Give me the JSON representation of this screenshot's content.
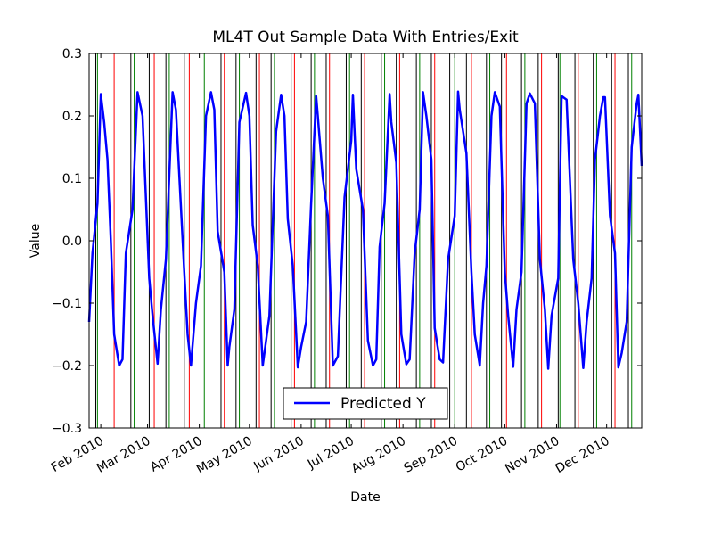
{
  "chart_data": {
    "type": "line",
    "title": "ML4T Out Sample Data With Entries/Exit",
    "x_label": "Date",
    "y_label": "Value",
    "xlim": [
      "2010-01-25",
      "2010-12-22"
    ],
    "xticks": [
      {
        "value": "2010-02-01",
        "label": "Feb 2010"
      },
      {
        "value": "2010-03-01",
        "label": "Mar 2010"
      },
      {
        "value": "2010-04-01",
        "label": "Apr 2010"
      },
      {
        "value": "2010-05-01",
        "label": "May 2010"
      },
      {
        "value": "2010-06-01",
        "label": "Jun 2010"
      },
      {
        "value": "2010-07-01",
        "label": "Jul 2010"
      },
      {
        "value": "2010-08-01",
        "label": "Aug 2010"
      },
      {
        "value": "2010-09-01",
        "label": "Sep 2010"
      },
      {
        "value": "2010-10-01",
        "label": "Oct 2010"
      },
      {
        "value": "2010-11-01",
        "label": "Nov 2010"
      },
      {
        "value": "2010-12-01",
        "label": "Dec 2010"
      }
    ],
    "ylim": [
      -0.3,
      0.3
    ],
    "yticks": [
      {
        "value": -0.3,
        "label": "−0.3"
      },
      {
        "value": -0.2,
        "label": "−0.2"
      },
      {
        "value": -0.1,
        "label": "−0.1"
      },
      {
        "value": 0,
        "label": "0.0"
      },
      0.1,
      0.2,
      0.3
    ],
    "legend": "lower center",
    "vlines": [
      {
        "color": "#008000",
        "x": [
          "2010-01-30",
          "2010-02-21",
          "2010-03-14",
          "2010-04-04",
          "2010-04-25",
          "2010-05-16",
          "2010-06-09",
          "2010-06-30",
          "2010-07-21",
          "2010-08-11",
          "2010-09-01",
          "2010-09-22",
          "2010-10-13",
          "2010-11-03",
          "2010-11-25",
          "2010-12-16"
        ]
      },
      {
        "color": "#000000",
        "x": [
          "2010-01-29",
          "2010-02-19",
          "2010-03-02",
          "2010-03-12",
          "2010-03-23",
          "2010-04-02",
          "2010-04-14",
          "2010-04-23",
          "2010-05-05",
          "2010-05-14",
          "2010-05-26",
          "2010-06-07",
          "2010-06-16",
          "2010-06-28",
          "2010-07-07",
          "2010-07-19",
          "2010-07-28",
          "2010-08-09",
          "2010-08-18",
          "2010-08-29",
          "2010-09-08",
          "2010-09-20",
          "2010-09-29",
          "2010-10-11",
          "2010-10-21",
          "2010-11-02",
          "2010-11-12",
          "2010-11-23",
          "2010-12-04",
          "2010-12-14"
        ]
      },
      {
        "color": "#ff0000",
        "x": [
          "2010-02-09",
          "2010-03-05",
          "2010-03-26",
          "2010-04-16",
          "2010-05-07",
          "2010-05-28",
          "2010-06-18",
          "2010-07-09",
          "2010-07-30",
          "2010-08-20",
          "2010-09-11",
          "2010-10-02",
          "2010-10-23",
          "2010-11-14",
          "2010-12-06"
        ]
      }
    ],
    "x": [
      "2010-01-25",
      "2010-01-27",
      "2010-01-30",
      "2010-02-01",
      "2010-02-03",
      "2010-02-05",
      "2010-02-07",
      "2010-02-09",
      "2010-02-12",
      "2010-02-14",
      "2010-02-16",
      "2010-02-20",
      "2010-02-23",
      "2010-02-26",
      "2010-03-02",
      "2010-03-04",
      "2010-03-07",
      "2010-03-09",
      "2010-03-12",
      "2010-03-16",
      "2010-03-18",
      "2010-03-23",
      "2010-03-25",
      "2010-03-27",
      "2010-03-30",
      "2010-04-02",
      "2010-04-05",
      "2010-04-08",
      "2010-04-10",
      "2010-04-12",
      "2010-04-16",
      "2010-04-18",
      "2010-04-19",
      "2010-04-22",
      "2010-04-25",
      "2010-04-29",
      "2010-05-01",
      "2010-05-03",
      "2010-05-06",
      "2010-05-09",
      "2010-05-10",
      "2010-05-13",
      "2010-05-17",
      "2010-05-20",
      "2010-05-22",
      "2010-05-24",
      "2010-05-27",
      "2010-05-30",
      "2010-06-01",
      "2010-06-04",
      "2010-06-07",
      "2010-06-10",
      "2010-06-14",
      "2010-06-17",
      "2010-06-20",
      "2010-06-23",
      "2010-06-27",
      "2010-07-01",
      "2010-07-02",
      "2010-07-04",
      "2010-07-08",
      "2010-07-11",
      "2010-07-14",
      "2010-07-16",
      "2010-07-18",
      "2010-07-21",
      "2010-07-24",
      "2010-07-25",
      "2010-07-28",
      "2010-07-31",
      "2010-08-03",
      "2010-08-05",
      "2010-08-08",
      "2010-08-11",
      "2010-08-13",
      "2010-08-15",
      "2010-08-18",
      "2010-08-20",
      "2010-08-23",
      "2010-08-25",
      "2010-08-28",
      "2010-09-01",
      "2010-09-03",
      "2010-09-04",
      "2010-09-08",
      "2010-09-11",
      "2010-09-13",
      "2010-09-16",
      "2010-09-18",
      "2010-09-20",
      "2010-09-23",
      "2010-09-25",
      "2010-09-28",
      "2010-10-01",
      "2010-10-03",
      "2010-10-06",
      "2010-10-08",
      "2010-10-11",
      "2010-10-14",
      "2010-10-16",
      "2010-10-19",
      "2010-10-22",
      "2010-10-25",
      "2010-10-27",
      "2010-10-29",
      "2010-11-02",
      "2010-11-04",
      "2010-11-07",
      "2010-11-11",
      "2010-11-14",
      "2010-11-17",
      "2010-11-19",
      "2010-11-22",
      "2010-11-24",
      "2010-11-27",
      "2010-11-29",
      "2010-11-30",
      "2010-12-03",
      "2010-12-06",
      "2010-12-08",
      "2010-12-10",
      "2010-12-13",
      "2010-12-16",
      "2010-12-19",
      "2010-12-20",
      "2010-12-22"
    ],
    "series": [
      {
        "name": "Predicted Y",
        "color": "#0000ff",
        "values": [
          -0.13,
          -0.02,
          0.06,
          0.235,
          0.19,
          0.13,
          0.0,
          -0.15,
          -0.2,
          -0.19,
          -0.02,
          0.05,
          0.238,
          0.2,
          -0.06,
          -0.12,
          -0.197,
          -0.11,
          -0.03,
          0.238,
          0.21,
          -0.05,
          -0.15,
          -0.2,
          -0.1,
          -0.04,
          0.2,
          0.238,
          0.21,
          0.015,
          -0.05,
          -0.2,
          -0.17,
          -0.11,
          0.19,
          0.237,
          0.2,
          0.025,
          -0.04,
          -0.2,
          -0.18,
          -0.12,
          0.175,
          0.234,
          0.2,
          0.035,
          -0.04,
          -0.203,
          -0.17,
          -0.13,
          0.06,
          0.232,
          0.1,
          0.04,
          -0.2,
          -0.185,
          0.07,
          0.16,
          0.234,
          0.115,
          0.05,
          -0.16,
          -0.2,
          -0.19,
          -0.01,
          0.06,
          0.235,
          0.19,
          0.125,
          -0.15,
          -0.198,
          -0.19,
          -0.02,
          0.05,
          0.238,
          0.2,
          0.13,
          -0.14,
          -0.19,
          -0.195,
          -0.03,
          0.04,
          0.239,
          0.21,
          0.14,
          -0.05,
          -0.15,
          -0.2,
          -0.1,
          -0.04,
          0.2,
          0.238,
          0.215,
          -0.05,
          -0.12,
          -0.202,
          -0.11,
          -0.05,
          0.22,
          0.236,
          0.22,
          -0.03,
          -0.11,
          -0.205,
          -0.12,
          -0.06,
          0.232,
          0.226,
          -0.03,
          -0.1,
          -0.204,
          -0.13,
          -0.06,
          0.13,
          0.2,
          0.23,
          0.23,
          0.04,
          -0.02,
          -0.203,
          -0.18,
          -0.13,
          0.15,
          0.22,
          0.234,
          0.12
        ]
      }
    ]
  }
}
